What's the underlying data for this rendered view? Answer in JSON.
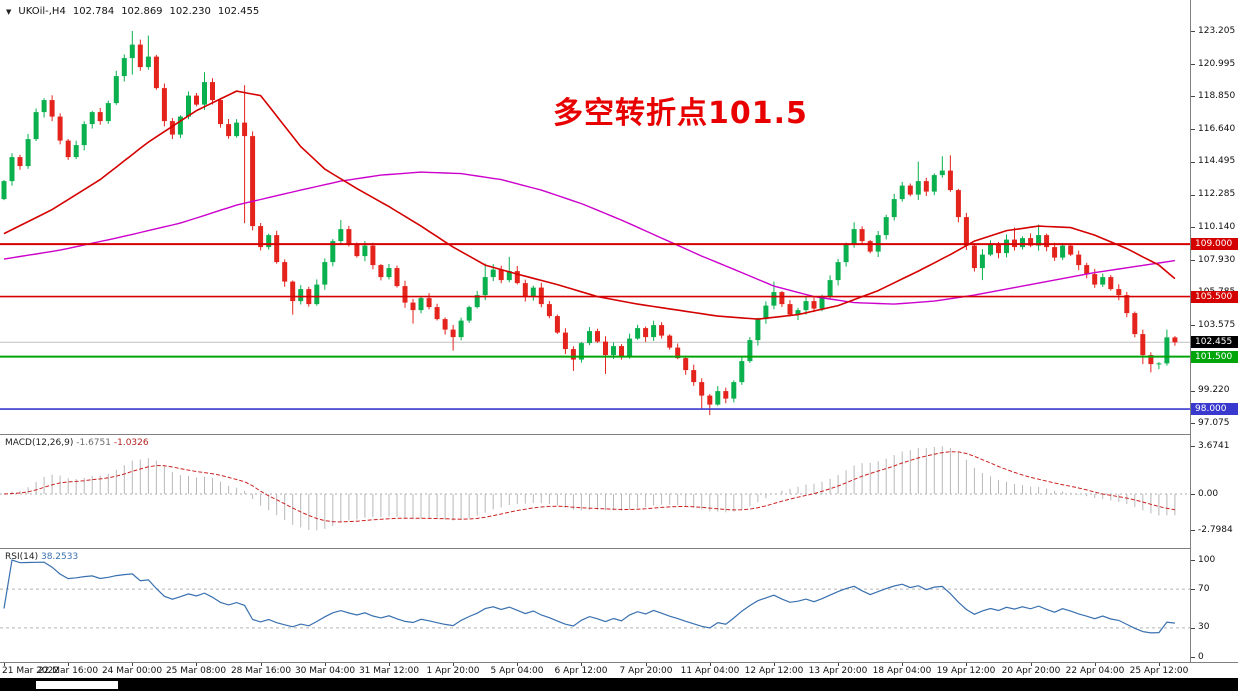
{
  "header": {
    "symbol_period": "UKOil-,H4",
    "open": "102.784",
    "high": "102.869",
    "low": "102.230",
    "close": "102.455"
  },
  "annotation": {
    "text": "多空转折点101.5",
    "color": "#e80000"
  },
  "panels": {
    "macd": {
      "label": "MACD(12,26,9)",
      "value_main": "-1.6751",
      "value_signal": "-1.0326",
      "scale_labels": [
        "3.6741",
        "0.00",
        "-2.7984"
      ]
    },
    "rsi": {
      "label": "RSI(14)",
      "value": "38.2533",
      "scale_labels": [
        "100",
        "70",
        "30",
        "0"
      ]
    }
  },
  "price_axis": {
    "labels": [
      "123.205",
      "120.995",
      "118.850",
      "116.640",
      "114.495",
      "112.285",
      "110.140",
      "107.930",
      "105.785",
      "103.575",
      "101.430",
      "99.220",
      "97.075"
    ],
    "badges": [
      {
        "text": "109.000",
        "price": 109.0,
        "bg": "#d40000"
      },
      {
        "text": "105.500",
        "price": 105.5,
        "bg": "#d40000"
      },
      {
        "text": "102.455",
        "price": 102.455,
        "bg": "#000000"
      },
      {
        "text": "101.500",
        "price": 101.5,
        "bg": "#00a50a"
      },
      {
        "text": "98.000",
        "price": 98.0,
        "bg": "#3939cf"
      }
    ]
  },
  "time_axis": {
    "labels": [
      "21 Mar 2022",
      "22 Mar 16:00",
      "24 Mar 00:00",
      "25 Mar 08:00",
      "28 Mar 16:00",
      "30 Mar 04:00",
      "31 Mar 12:00",
      "1 Apr 20:00",
      "5 Apr 04:00",
      "6 Apr 12:00",
      "7 Apr 20:00",
      "11 Apr 04:00",
      "12 Apr 12:00",
      "13 Apr 20:00",
      "18 Apr 04:00",
      "19 Apr 12:00",
      "20 Apr 20:00",
      "22 Apr 04:00",
      "25 Apr 12:00"
    ]
  },
  "chart_data": {
    "type": "candlestick",
    "symbol": "UKOil-",
    "timeframe": "H4",
    "title": "UKOil- H4 candlestick chart with MACD(12,26,9) and RSI(14)",
    "annotations": [
      "多空转折点101.5"
    ],
    "ylim": [
      97.075,
      123.205
    ],
    "open_first": 112.0,
    "closes": [
      113.2,
      114.8,
      114.2,
      116.0,
      117.8,
      118.6,
      117.5,
      115.9,
      114.8,
      115.6,
      117.0,
      117.8,
      117.2,
      118.4,
      120.2,
      121.4,
      122.3,
      120.8,
      121.5,
      119.4,
      117.2,
      116.3,
      117.5,
      118.9,
      118.3,
      119.8,
      118.6,
      117.0,
      116.2,
      117.1,
      116.2,
      110.2,
      108.8,
      109.6,
      107.8,
      106.5,
      105.2,
      106.0,
      105.0,
      106.3,
      107.8,
      109.2,
      110.0,
      109.0,
      108.2,
      108.9,
      107.6,
      106.8,
      107.4,
      106.2,
      105.1,
      104.6,
      105.4,
      104.8,
      104.0,
      103.3,
      102.8,
      103.9,
      104.8,
      105.6,
      106.8,
      107.3,
      106.6,
      107.2,
      106.4,
      105.5,
      106.1,
      105.0,
      104.2,
      103.1,
      102.0,
      101.3,
      102.4,
      103.2,
      102.5,
      101.6,
      102.2,
      101.5,
      102.7,
      103.4,
      102.8,
      103.6,
      102.9,
      102.1,
      101.4,
      100.6,
      99.8,
      98.9,
      98.3,
      99.2,
      98.7,
      99.8,
      101.2,
      102.6,
      104.0,
      104.9,
      105.8,
      105.0,
      104.3,
      104.6,
      105.2,
      104.7,
      105.5,
      106.6,
      107.8,
      109.0,
      110.0,
      109.2,
      108.5,
      109.6,
      110.8,
      112.0,
      112.9,
      112.3,
      113.2,
      112.5,
      113.6,
      113.9,
      112.6,
      110.8,
      108.9,
      107.4,
      108.3,
      109.0,
      108.4,
      109.3,
      108.8,
      109.4,
      108.9,
      109.6,
      108.8,
      108.1,
      108.9,
      108.3,
      107.6,
      107.0,
      106.3,
      106.8,
      106.0,
      105.6,
      104.4,
      103.0,
      101.6,
      101.0,
      101.05,
      102.784,
      102.455
    ],
    "wick_overrides": {
      "16": [
        123.205,
        120.3
      ],
      "18": [
        122.9,
        null
      ],
      "25": [
        120.45,
        null
      ],
      "30": [
        119.6,
        110.4
      ],
      "36": [
        null,
        104.3
      ],
      "42": [
        110.6,
        null
      ],
      "51": [
        null,
        103.7
      ],
      "56": [
        null,
        101.9
      ],
      "60": [
        107.7,
        null
      ],
      "63": [
        108.15,
        null
      ],
      "71": [
        null,
        100.55
      ],
      "75": [
        null,
        100.35
      ],
      "87": [
        null,
        98.0
      ],
      "88": [
        99.0,
        97.6
      ],
      "96": [
        106.5,
        null
      ],
      "106": [
        110.45,
        null
      ],
      "114": [
        114.5,
        null
      ],
      "117": [
        114.85,
        null
      ],
      "118": [
        114.92,
        null
      ],
      "122": [
        null,
        106.6
      ],
      "126": [
        110.1,
        null
      ],
      "129": [
        110.3,
        null
      ],
      "142": [
        null,
        101.0
      ],
      "143": [
        null,
        100.45
      ],
      "145": [
        103.3,
        100.9
      ]
    },
    "last_bar": [
      102.784,
      102.869,
      102.23,
      102.455
    ],
    "ma_red": [
      [
        0,
        109.7
      ],
      [
        6,
        111.3
      ],
      [
        12,
        113.3
      ],
      [
        18,
        115.8
      ],
      [
        24,
        117.9
      ],
      [
        29,
        119.2
      ],
      [
        32,
        118.9
      ],
      [
        37,
        115.5
      ],
      [
        40,
        114.0
      ],
      [
        44,
        112.7
      ],
      [
        48,
        111.5
      ],
      [
        52,
        110.2
      ],
      [
        56,
        108.8
      ],
      [
        60,
        107.6
      ],
      [
        64,
        107.0
      ],
      [
        69,
        106.3
      ],
      [
        74,
        105.5
      ],
      [
        79,
        105.0
      ],
      [
        84,
        104.6
      ],
      [
        89,
        104.2
      ],
      [
        94,
        104.0
      ],
      [
        99,
        104.3
      ],
      [
        104,
        104.9
      ],
      [
        109,
        105.9
      ],
      [
        114,
        107.2
      ],
      [
        118,
        108.3
      ],
      [
        121,
        109.2
      ],
      [
        125,
        109.9
      ],
      [
        129,
        110.2
      ],
      [
        133,
        110.1
      ],
      [
        136,
        109.6
      ],
      [
        140,
        108.7
      ],
      [
        144,
        107.6
      ],
      [
        146,
        106.7
      ]
    ],
    "ma_magenta": [
      [
        0,
        108.0
      ],
      [
        7,
        108.6
      ],
      [
        14,
        109.4
      ],
      [
        22,
        110.4
      ],
      [
        29,
        111.6
      ],
      [
        37,
        112.6
      ],
      [
        42,
        113.2
      ],
      [
        47,
        113.6
      ],
      [
        52,
        113.8
      ],
      [
        57,
        113.7
      ],
      [
        62,
        113.3
      ],
      [
        67,
        112.6
      ],
      [
        72,
        111.7
      ],
      [
        77,
        110.6
      ],
      [
        82,
        109.4
      ],
      [
        87,
        108.2
      ],
      [
        92,
        107.1
      ],
      [
        96,
        106.2
      ],
      [
        101,
        105.5
      ],
      [
        106,
        105.1
      ],
      [
        111,
        105.0
      ],
      [
        116,
        105.2
      ],
      [
        121,
        105.6
      ],
      [
        126,
        106.1
      ],
      [
        131,
        106.6
      ],
      [
        136,
        107.1
      ],
      [
        141,
        107.5
      ],
      [
        146,
        107.9
      ]
    ],
    "hlines": [
      {
        "price": 102.455,
        "color": "#c0c0c0",
        "width": 1,
        "behind": true
      },
      {
        "price": 109.0,
        "color": "#d40000",
        "width": 2
      },
      {
        "price": 105.5,
        "color": "#d40000",
        "width": 1.6
      },
      {
        "price": 101.5,
        "color": "#00a50a",
        "width": 2
      },
      {
        "price": 98.0,
        "color": "#3939cf",
        "width": 1.6
      }
    ],
    "macd_axis": {
      "max": 3.6741,
      "min": -2.7984
    },
    "macd_current": {
      "main": -1.6751,
      "signal": -1.0326
    },
    "rsi_axis": {
      "max": 100,
      "min": 0,
      "levels": [
        70,
        30
      ]
    },
    "rsi_current": 38.2533,
    "colors": {
      "up": "#0ab04e",
      "down": "#e3231c",
      "ma_fast": "#d40000",
      "ma_slow": "#cc00cc",
      "macd_hist": "#b8b8b8",
      "macd_signal": "#cc2222",
      "rsi": "#3970af",
      "bid_line": "#c0c0c0"
    }
  }
}
